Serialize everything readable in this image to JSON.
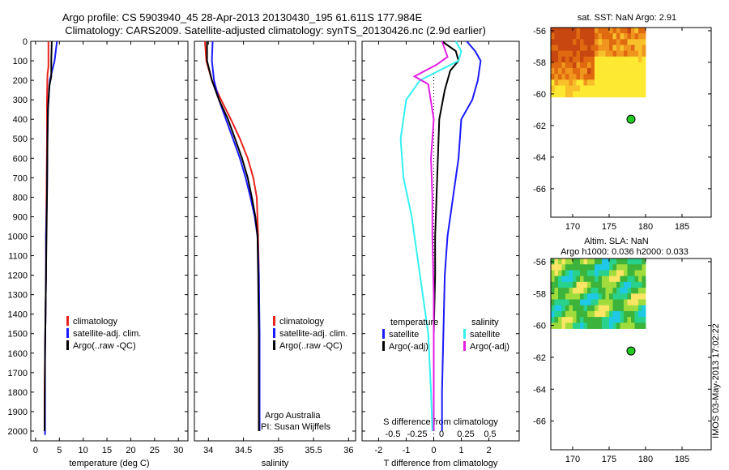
{
  "header": {
    "line1": "Argo profile: CS 5903940_45 28-Apr-2013 20130430_195 61.611S 177.984E",
    "line2": "Climatology: CARS2009. Satellite-adjusted climatology: synTS_20130426.nc (2.9d earlier)"
  },
  "colors": {
    "red": "#e8231d",
    "blue": "#1a1aff",
    "black": "#000000",
    "cyan": "#33f0f0",
    "magenta": "#e21ee2",
    "green": "#22cc22"
  },
  "chart_data": [
    {
      "type": "line",
      "id": "temp",
      "xlabel": "temperature (deg C)",
      "ylabel": "",
      "xlim": [
        -1,
        32
      ],
      "ylim": [
        2050,
        0
      ],
      "xticks": [
        0,
        5,
        10,
        15,
        20,
        25,
        30
      ],
      "xtick_labels": [
        "0",
        "5",
        "10",
        "15",
        "20",
        "25",
        "30"
      ],
      "yticks": [
        0,
        100,
        200,
        300,
        400,
        500,
        600,
        700,
        800,
        900,
        1000,
        1100,
        1200,
        1300,
        1400,
        1500,
        1600,
        1700,
        1800,
        1900,
        2000
      ],
      "legend": [
        "climatology",
        "satellite-adj. clim.",
        "Argo(..raw -QC)"
      ],
      "series": [
        {
          "name": "climatology",
          "color": "red",
          "x": [
            2.7,
            2.7,
            2.5,
            2.4,
            2.4,
            2.3,
            2.2,
            2.2,
            2.1,
            2.0,
            1.9,
            1.9
          ],
          "y": [
            0,
            130,
            170,
            300,
            500,
            800,
            1000,
            1200,
            1400,
            1600,
            1800,
            2000
          ]
        },
        {
          "name": "satellite-adj. clim.",
          "color": "blue",
          "x": [
            4.5,
            4.0,
            3.0,
            2.6,
            2.5,
            2.4,
            2.2,
            2.2,
            2.1,
            2.0,
            2.0
          ],
          "y": [
            0,
            100,
            200,
            350,
            500,
            800,
            1000,
            1200,
            1400,
            1600,
            2020
          ]
        },
        {
          "name": "Argo(..raw -QC)",
          "color": "black",
          "x": [
            3.4,
            3.3,
            3.3,
            2.9,
            2.6,
            2.5,
            2.4,
            2.3,
            2.2,
            2.1,
            2.0,
            1.9
          ],
          "y": [
            0,
            100,
            180,
            230,
            350,
            500,
            800,
            1000,
            1200,
            1400,
            1600,
            2000
          ]
        }
      ]
    },
    {
      "type": "line",
      "id": "sal",
      "xlabel": "salinity",
      "ylabel": "",
      "xlim": [
        33.8,
        36.1
      ],
      "ylim": [
        2050,
        0
      ],
      "xticks": [
        34,
        34.5,
        35,
        35.5,
        36
      ],
      "xtick_labels": [
        "34",
        "34.5",
        "35",
        "35.5",
        "36"
      ],
      "legend": [
        "climatology",
        "satellite-adj. clim.",
        "Argo(..raw -QC)"
      ],
      "annotations": [
        "Argo Australia",
        "PI: Susan Wijffels"
      ],
      "series": [
        {
          "name": "climatology",
          "color": "red",
          "x": [
            33.95,
            33.97,
            34.05,
            34.18,
            34.32,
            34.45,
            34.56,
            34.64,
            34.69,
            34.71,
            34.72,
            34.72,
            34.72
          ],
          "y": [
            0,
            100,
            200,
            300,
            400,
            500,
            600,
            700,
            800,
            1000,
            1200,
            1500,
            2000
          ]
        },
        {
          "name": "satellite-adj. clim.",
          "color": "blue",
          "x": [
            34.06,
            34.05,
            34.08,
            34.15,
            34.25,
            34.35,
            34.45,
            34.53,
            34.6,
            34.66,
            34.7,
            34.72,
            34.73,
            34.73
          ],
          "y": [
            0,
            100,
            200,
            300,
            400,
            500,
            600,
            700,
            800,
            900,
            1000,
            1200,
            1500,
            2000
          ]
        },
        {
          "name": "Argo(..raw -QC)",
          "color": "black",
          "x": [
            33.98,
            33.98,
            34.05,
            34.15,
            34.28,
            34.38,
            34.48,
            34.56,
            34.62,
            34.67,
            34.7,
            34.71,
            34.72,
            34.72
          ],
          "y": [
            0,
            100,
            200,
            300,
            400,
            500,
            600,
            700,
            800,
            900,
            1000,
            1200,
            1500,
            2000
          ]
        }
      ]
    },
    {
      "type": "line",
      "id": "diff",
      "xlabel": "T difference from climatology",
      "xlabel_top": "S difference from climatology",
      "xlim": [
        -2.6,
        3.1
      ],
      "ylim": [
        2050,
        0
      ],
      "xticks": [
        -2,
        -1,
        0,
        1,
        2
      ],
      "xtick_labels": [
        "-2",
        "-1",
        "0",
        "1",
        "2"
      ],
      "sticks": [
        -0.5,
        -0.25,
        0,
        0.25,
        0.5
      ],
      "stick_labels": [
        "-0.5",
        "-0.25",
        "0",
        "0.25",
        "0.5"
      ],
      "legend_headers": [
        "temperature",
        "salinity"
      ],
      "legend": [
        "satellite",
        "Argo(-adj)",
        "satellite",
        "Argo(-adj)"
      ],
      "series": [
        {
          "name": "satellite",
          "color": "blue",
          "x": [
            1.2,
            1.5,
            1.7,
            1.6,
            1.4,
            1.0,
            0.9,
            0.7,
            0.5,
            0.4,
            0.35,
            0.3,
            0.3
          ],
          "y": [
            0,
            50,
            100,
            200,
            300,
            400,
            600,
            800,
            1000,
            1200,
            1500,
            1800,
            2000
          ]
        },
        {
          "name": "Argo(-adj)",
          "color": "black",
          "x": [
            0.3,
            0.8,
            0.9,
            0.6,
            0.4,
            0.2,
            0.15,
            0.1,
            0.05,
            0.05,
            0.0,
            0.0,
            0.0
          ],
          "y": [
            0,
            50,
            100,
            150,
            250,
            400,
            600,
            800,
            1000,
            1200,
            1500,
            1800,
            2000
          ]
        },
        {
          "name": "satellite",
          "color": "cyan",
          "x": [
            0.8,
            1.0,
            0.9,
            -0.5,
            -1.0,
            -1.2,
            -1.1,
            -0.8,
            -0.6,
            -0.4,
            -0.2,
            -0.1,
            -0.05
          ],
          "y": [
            0,
            50,
            100,
            200,
            300,
            500,
            700,
            900,
            1100,
            1300,
            1500,
            1800,
            2000
          ]
        },
        {
          "name": "Argo(-adj)",
          "color": "magenta",
          "x": [
            0.3,
            0.5,
            0.1,
            -0.7,
            -0.2,
            0.0,
            -0.1,
            -0.05,
            -0.05,
            0.0,
            0.0,
            0.0
          ],
          "y": [
            0,
            80,
            120,
            180,
            220,
            400,
            600,
            800,
            1000,
            1300,
            1600,
            2000
          ]
        }
      ]
    },
    {
      "type": "heatmap",
      "id": "sst",
      "title": "sat. SST: NaN Argo: 2.91",
      "xlim": [
        167,
        189
      ],
      "ylim": [
        -67.8,
        -55.8
      ],
      "xticks": [
        170,
        175,
        180,
        185
      ],
      "xtick_labels": [
        "170",
        "175",
        "180",
        "185"
      ],
      "yticks": [
        -56,
        -58,
        -60,
        -62,
        -64,
        -66
      ],
      "ytick_labels": [
        "-56",
        "-58",
        "-60",
        "-62",
        "-64",
        "-66"
      ],
      "data_extent": {
        "lon": [
          167,
          180
        ],
        "lat": [
          -60.2,
          -55.8
        ]
      },
      "point": {
        "lon": 178,
        "lat": -61.6
      },
      "palette": [
        "#c8460f",
        "#e06a10",
        "#f0961e",
        "#f8c02a",
        "#fde832"
      ]
    },
    {
      "type": "heatmap",
      "id": "sla",
      "title": "Altim. SLA: NaN",
      "subtitle": "Argo h1000: 0.036 h2000: 0.033",
      "xlim": [
        167,
        189
      ],
      "ylim": [
        -67.8,
        -55.8
      ],
      "xticks": [
        170,
        175,
        180,
        185
      ],
      "xtick_labels": [
        "170",
        "175",
        "180",
        "185"
      ],
      "yticks": [
        -56,
        -58,
        -60,
        -62,
        -64,
        -66
      ],
      "ytick_labels": [
        "-56",
        "-58",
        "-60",
        "-62",
        "-64",
        "-66"
      ],
      "data_extent": {
        "lon": [
          167,
          180
        ],
        "lat": [
          -60.2,
          -55.8
        ]
      },
      "point": {
        "lon": 178,
        "lat": -61.6
      },
      "palette": [
        "#1ec8e6",
        "#28d28c",
        "#3cb43c",
        "#a0dc3c",
        "#fae664"
      ]
    }
  ],
  "footer": {
    "stamp": "IMOS 03-May-2013 17:02:22"
  }
}
